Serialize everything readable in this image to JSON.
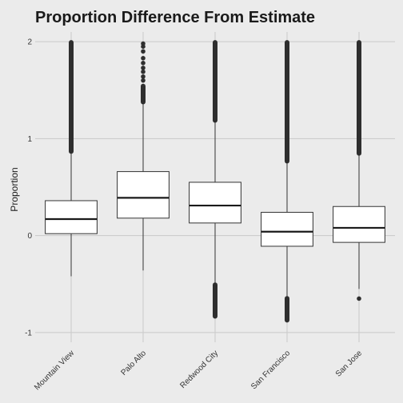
{
  "chart_data": {
    "type": "boxplot",
    "title": "Proportion Difference From Estimate",
    "xlabel": "",
    "ylabel": "Proportion",
    "ylim": [
      -1.1,
      2.1
    ],
    "yticks": [
      -1,
      0,
      1,
      2
    ],
    "grid": true,
    "categories": [
      "Mountain View",
      "Palo Alto",
      "Redwood City",
      "San Francisco",
      "San Jose"
    ],
    "boxes": [
      {
        "category": "Mountain View",
        "whisker_low": -0.42,
        "q1": 0.02,
        "median": 0.17,
        "q3": 0.36,
        "whisker_high": 0.86,
        "outlier_ranges": [
          [
            0.86,
            2.0
          ]
        ],
        "outlier_points": []
      },
      {
        "category": "Palo Alto",
        "whisker_low": -0.36,
        "q1": 0.18,
        "median": 0.39,
        "q3": 0.66,
        "whisker_high": 1.37,
        "outlier_ranges": [
          [
            1.37,
            1.55
          ]
        ],
        "outlier_points": [
          1.6,
          1.64,
          1.69,
          1.73,
          1.78,
          1.83,
          1.9,
          1.95,
          1.98
        ]
      },
      {
        "category": "Redwood City",
        "whisker_low": -0.5,
        "q1": 0.13,
        "median": 0.31,
        "q3": 0.55,
        "whisker_high": 1.18,
        "outlier_ranges": [
          [
            1.18,
            2.0
          ],
          [
            -0.84,
            -0.5
          ]
        ],
        "outlier_points": []
      },
      {
        "category": "San Francisco",
        "whisker_low": -0.64,
        "q1": -0.11,
        "median": 0.04,
        "q3": 0.24,
        "whisker_high": 0.76,
        "outlier_ranges": [
          [
            0.76,
            2.0
          ],
          [
            -0.88,
            -0.64
          ]
        ],
        "outlier_points": []
      },
      {
        "category": "San Jose",
        "whisker_low": -0.55,
        "q1": -0.07,
        "median": 0.08,
        "q3": 0.3,
        "whisker_high": 0.84,
        "outlier_ranges": [
          [
            0.84,
            2.0
          ]
        ],
        "outlier_points": [
          -0.65
        ]
      }
    ]
  }
}
